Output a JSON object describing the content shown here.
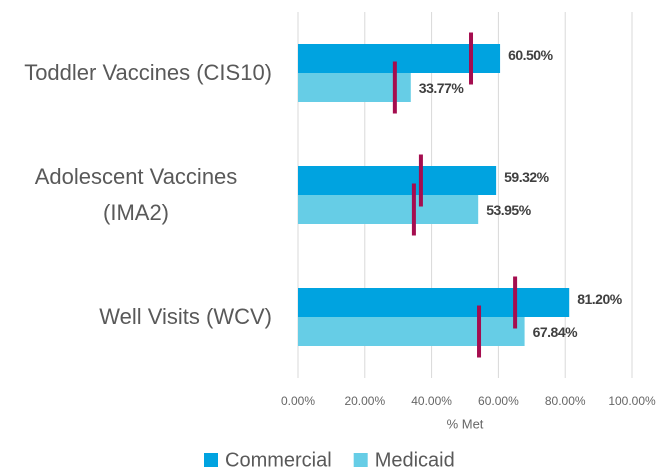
{
  "chart_data": {
    "type": "hbar",
    "categories": [
      "Toddler Vaccines (CIS10)",
      "Adolescent Vaccines (IMA2)",
      "Well Visits (WCV)"
    ],
    "series": [
      {
        "name": "Commercial",
        "color": "#00a3e0",
        "values": [
          60.5,
          59.32,
          81.2
        ],
        "value_labels": [
          "60.50%",
          "59.32%",
          "81.20%"
        ],
        "benchmark_values": [
          51.8,
          36.8,
          65.0
        ],
        "benchmark_color": "#a50d4f"
      },
      {
        "name": "Medicaid",
        "color": "#66cde6",
        "values": [
          33.77,
          53.95,
          67.84
        ],
        "value_labels": [
          "33.77%",
          "53.95%",
          "67.84%"
        ],
        "benchmark_values": [
          29.0,
          34.7,
          54.2
        ],
        "benchmark_color": "#a50d4f"
      }
    ],
    "xlabel": "% Met",
    "xlim": [
      0,
      100
    ],
    "xticks": [
      {
        "value": 0,
        "label": "0.00%"
      },
      {
        "value": 20,
        "label": "20.00%"
      },
      {
        "value": 40,
        "label": "40.00%"
      },
      {
        "value": 60,
        "label": "60.00%"
      },
      {
        "value": 80,
        "label": "80.00%"
      },
      {
        "value": 100,
        "label": "100.00%"
      }
    ],
    "grid": true,
    "legend": "bottom"
  }
}
